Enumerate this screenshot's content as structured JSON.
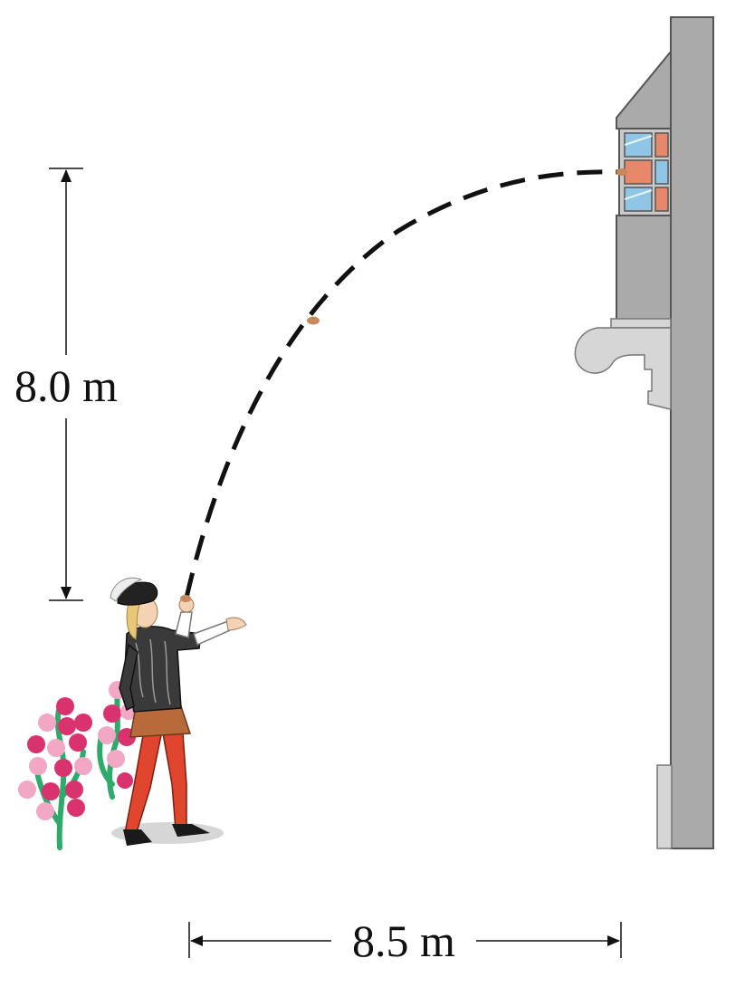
{
  "labels": {
    "height": "8.0 m",
    "distance": "8.5 m"
  },
  "colors": {
    "building": "#aaaaaa",
    "building_edge": "#555555",
    "building_light": "#d6d6d6",
    "window_glass": "#8fc6e6",
    "window_reflection": "#e7886a",
    "tunic": "#3a3a3a",
    "tights": "#e0452e",
    "skirt": "#b96a3b",
    "hair": "#e8c878",
    "skin": "#f3d3b3",
    "rose_dark": "#d9326f",
    "rose_light": "#f2a7c5",
    "stem": "#2eaa6a",
    "pebble": "#c9875a",
    "dim_line": "#111111"
  }
}
